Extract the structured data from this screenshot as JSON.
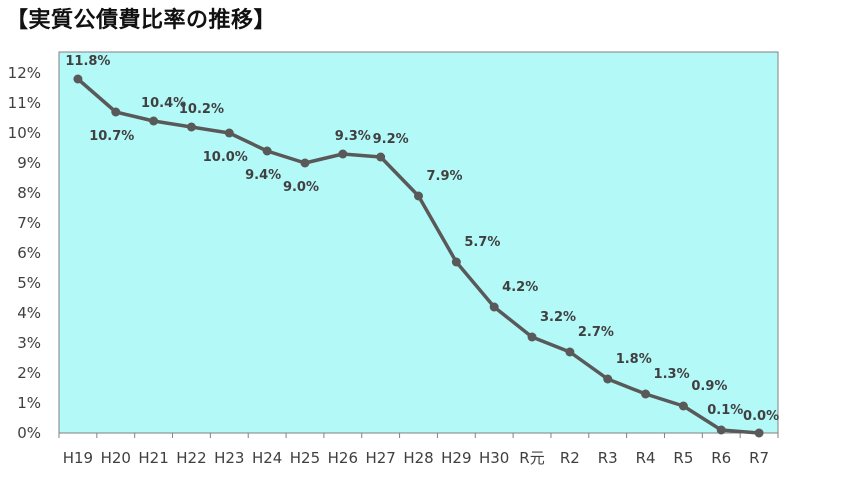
{
  "title": "【実質公債費比率の推移】",
  "colors": {
    "plot_background": "#b3f9f7",
    "line": "#595959",
    "axis": "#808080",
    "text": "#404040"
  },
  "chart_data": {
    "type": "line",
    "title": "【実質公債費比率の推移】",
    "xlabel": "",
    "ylabel": "",
    "categories": [
      "H19",
      "H20",
      "H21",
      "H22",
      "H23",
      "H24",
      "H25",
      "H26",
      "H27",
      "H28",
      "H29",
      "H30",
      "R元",
      "R2",
      "R3",
      "R4",
      "R5",
      "R6",
      "R7"
    ],
    "y_tick_labels": [
      "0%",
      "1%",
      "2%",
      "3%",
      "4%",
      "5%",
      "6%",
      "7%",
      "8%",
      "9%",
      "10%",
      "11%",
      "12%"
    ],
    "series": [
      {
        "values": [
          11.8,
          10.7,
          10.4,
          10.2,
          10.0,
          9.4,
          9.0,
          9.3,
          9.2,
          7.9,
          5.7,
          4.2,
          3.2,
          2.7,
          1.8,
          1.3,
          0.9,
          0.1,
          0.0
        ],
        "labels": [
          "11.8%",
          "10.7%",
          "10.4%",
          "10.2%",
          "10.0%",
          "9.4%",
          "9.0%",
          "9.3%",
          "9.2%",
          "7.9%",
          "5.7%",
          "4.2%",
          "3.2%",
          "2.7%",
          "1.8%",
          "1.3%",
          "0.9%",
          "0.1%",
          "0.0%"
        ]
      }
    ],
    "ylim": [
      0,
      12.7
    ],
    "grid": false,
    "legend": "none"
  }
}
